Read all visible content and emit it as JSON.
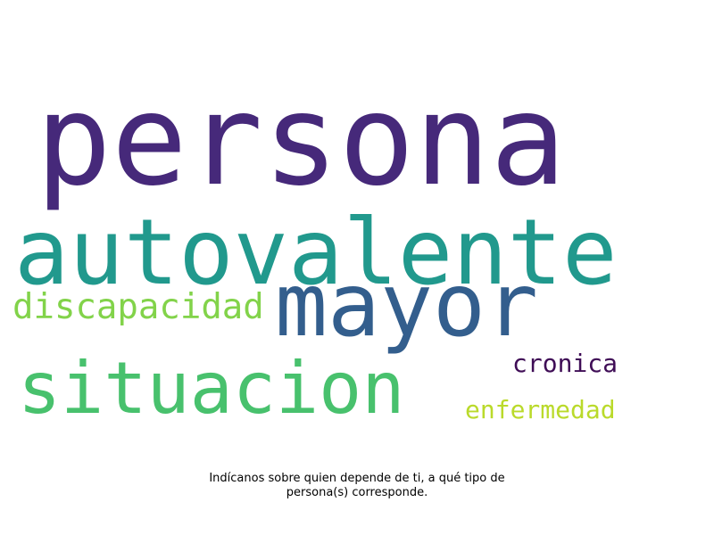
{
  "wordcloud": {
    "words": [
      {
        "text": "persona",
        "color": "#46297a"
      },
      {
        "text": "autovalente",
        "color": "#21998d"
      },
      {
        "text": "mayor",
        "color": "#335e8d"
      },
      {
        "text": "discapacidad",
        "color": "#82d34a"
      },
      {
        "text": "situacion",
        "color": "#48c16d"
      },
      {
        "text": "cronica",
        "color": "#3f0d56"
      },
      {
        "text": "enfermedad",
        "color": "#bada2b"
      }
    ]
  },
  "caption": {
    "line1": "Indícanos sobre quien depende de ti, a qué tipo de",
    "line2": "persona(s) corresponde."
  }
}
